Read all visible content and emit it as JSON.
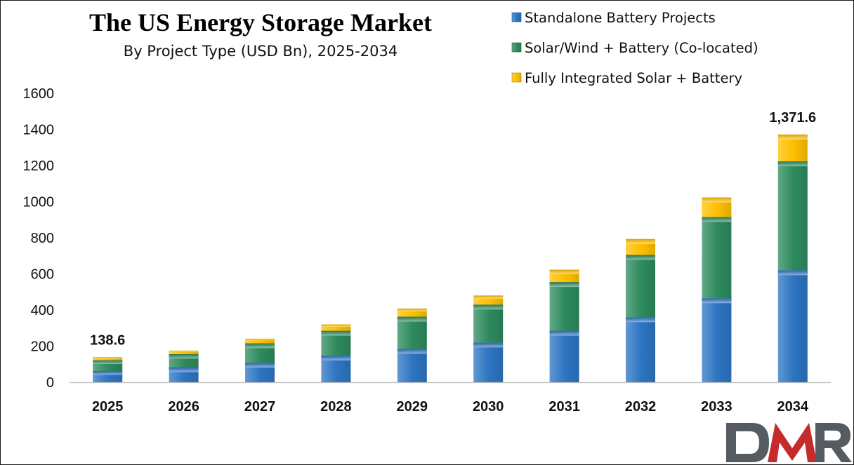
{
  "chart_data": {
    "type": "bar",
    "stacked": true,
    "title": "The US Energy Storage Market",
    "subtitle": "By Project Type (USD Bn), 2025-2034",
    "xlabel": "",
    "ylabel": "",
    "categories": [
      "2025",
      "2026",
      "2027",
      "2028",
      "2029",
      "2030",
      "2031",
      "2032",
      "2033",
      "2034"
    ],
    "series": [
      {
        "name": "Standalone Battery Projects",
        "color": "#2e75c3",
        "values": [
          62,
          83,
          108,
          148,
          185,
          220,
          285,
          360,
          465,
          620
        ]
      },
      {
        "name": "Solar/Wind + Battery (Co-located)",
        "color": "#2e8b5e",
        "values": [
          60,
          73,
          108,
          137,
          178,
          210,
          270,
          345,
          450,
          603
        ]
      },
      {
        "name": "Fully Integrated Solar + Battery",
        "color": "#ffc000",
        "values": [
          16.6,
          19,
          25,
          35,
          45,
          50,
          68,
          88,
          108,
          148.6
        ]
      }
    ],
    "totals": [
      138.6,
      175,
      241,
      320,
      408,
      480,
      623,
      793,
      1023,
      1371.6
    ],
    "ylim": [
      0,
      1600
    ],
    "yticks": [
      0,
      200,
      400,
      600,
      800,
      1000,
      1200,
      1400,
      1600
    ],
    "grid": false,
    "legend_position": "top-right",
    "data_labels": [
      {
        "category": "2025",
        "text": "138.6"
      },
      {
        "category": "2034",
        "text": "1,371.6"
      }
    ]
  },
  "logo": {
    "text": "DMR"
  }
}
